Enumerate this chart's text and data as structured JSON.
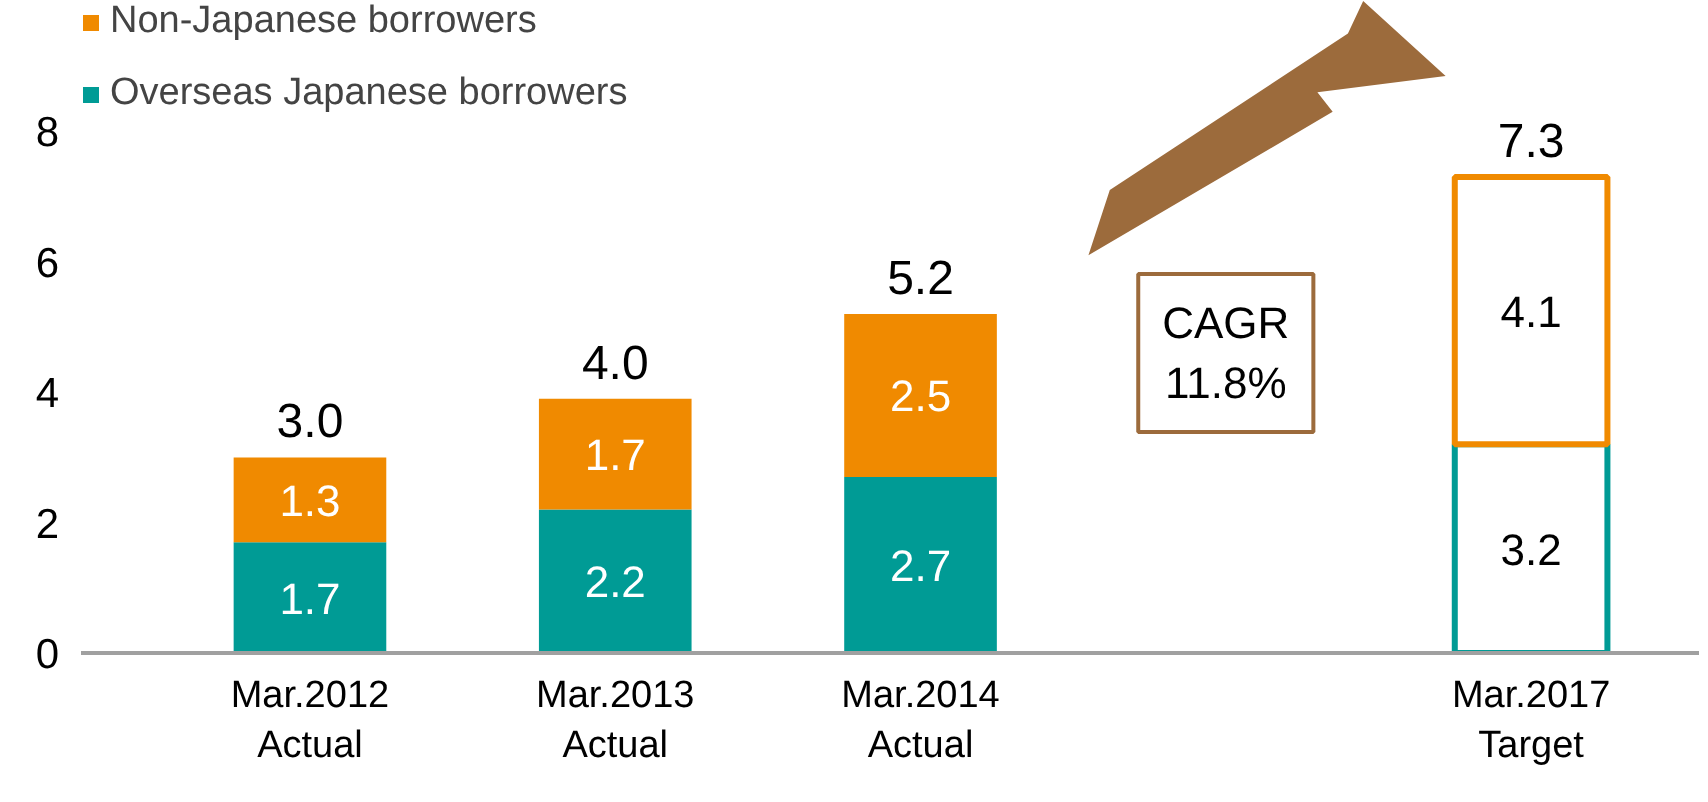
{
  "chart_data": {
    "type": "bar",
    "stacked": true,
    "categories": [
      "Mar.2012\nActual",
      "Mar.2013\nActual",
      "Mar.2014\nActual",
      null,
      "Mar.2017\nTarget"
    ],
    "series": [
      {
        "name": "Overseas Japanese borrowers",
        "color": "#009b95",
        "colors": [
          "#009b95",
          "#009b95",
          "#009b95",
          null,
          "#ffffff"
        ],
        "values": [
          1.7,
          2.2,
          2.7,
          null,
          3.2
        ]
      },
      {
        "name": "Non-Japanese borrowers",
        "color": "#f08a00",
        "colors": [
          "#f08a00",
          "#f08a00",
          "#f08a00",
          null,
          "#ffffff"
        ],
        "values": [
          1.3,
          1.7,
          2.5,
          null,
          4.1
        ]
      }
    ],
    "totals": [
      "3.0",
      "4.0",
      "5.2",
      null,
      "7.3"
    ],
    "data_labels": true,
    "ylim": [
      0,
      10
    ],
    "yticks": [
      0,
      2,
      4,
      6,
      8
    ],
    "grid": false,
    "legend": "top left",
    "annotations": [
      "CAGR\n11.8%"
    ]
  }
}
